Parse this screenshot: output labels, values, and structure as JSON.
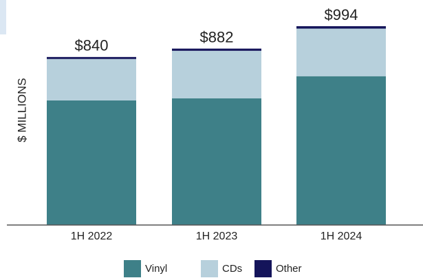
{
  "chart_data": {
    "type": "stacked_bar",
    "ylabel": "$ MILLIONS",
    "categories": [
      "1H 2022",
      "1H 2023",
      "1H 2024"
    ],
    "series": [
      {
        "name": "Vinyl",
        "color": "#3e8088",
        "values": [
          623,
          633,
          744
        ]
      },
      {
        "name": "CDs",
        "color": "#b7d0dc",
        "values": [
          207,
          238,
          238
        ]
      },
      {
        "name": "Other",
        "color": "#14145a",
        "values": [
          10,
          11,
          12
        ]
      }
    ],
    "totals": [
      840,
      882,
      994
    ],
    "total_labels": [
      "$840",
      "$882",
      "$994"
    ],
    "ylim": [
      0,
      1125
    ],
    "legend": "bottom"
  }
}
